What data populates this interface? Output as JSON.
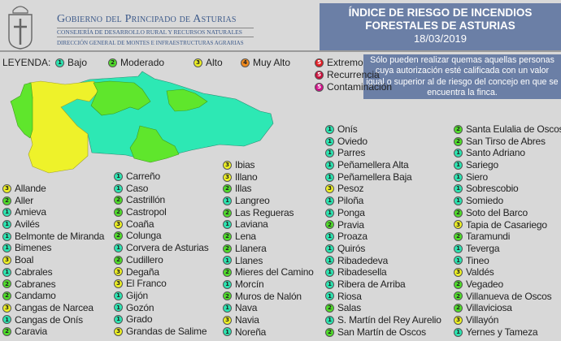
{
  "header": {
    "gov_title": "Gobierno del Principado de Asturias",
    "consejeria": "CONSEJERÍA DE DESARROLLO RURAL Y RECURSOS NATURALES",
    "direccion": "DIRECCIÓN GENERAL DE MONTES E INFRAESTRUCTURAS AGRARIAS",
    "title1": "ÍNDICE DE RIESGO DE INCENDIOS",
    "title2": "FORESTALES DE ASTURIAS",
    "date": "18/03/2019"
  },
  "info": "Sólo pueden realizar quemas aquellas personas cuya autorización esté calificada con un valor igual o superior al de riesgo del concejo en que se encuentra la finca.",
  "legend": {
    "label": "LEYENDA:",
    "items": [
      {
        "num": "1",
        "label": "Bajo",
        "color": "#2de3b0"
      },
      {
        "num": "2",
        "label": "Moderado",
        "color": "#4fdc2a"
      },
      {
        "num": "3",
        "label": "Alto",
        "color": "#ecef24"
      },
      {
        "num": "4",
        "label": "Muy Alto",
        "color": "#f08a1e"
      },
      {
        "num": "5",
        "label": "Extremo",
        "color": "#e01e25"
      },
      {
        "num": "5",
        "label": "Recurrencia",
        "color": "#c8103c"
      },
      {
        "num": "5",
        "label": "Contaminación",
        "color": "#d0128a"
      }
    ]
  },
  "map_colors": {
    "bajo": "#2de8b4",
    "moderado": "#5fe62c",
    "alto": "#eef22a"
  },
  "columns": [
    [
      [
        "3",
        "Allande"
      ],
      [
        "2",
        "Aller"
      ],
      [
        "1",
        "Amieva"
      ],
      [
        "1",
        "Avilés"
      ],
      [
        "1",
        "Belmonte de Miranda"
      ],
      [
        "1",
        "Bimenes"
      ],
      [
        "3",
        "Boal"
      ],
      [
        "1",
        "Cabrales"
      ],
      [
        "2",
        "Cabranes"
      ],
      [
        "2",
        "Candamo"
      ],
      [
        "3",
        "Cangas de Narcea"
      ],
      [
        "1",
        "Cangas de Onís"
      ],
      [
        "2",
        "Caravia"
      ]
    ],
    [
      [
        "1",
        "Carreño"
      ],
      [
        "1",
        "Caso"
      ],
      [
        "2",
        "Castrillón"
      ],
      [
        "2",
        "Castropol"
      ],
      [
        "3",
        "Coaña"
      ],
      [
        "2",
        "Colunga"
      ],
      [
        "1",
        "Corvera de Asturias"
      ],
      [
        "2",
        "Cudillero"
      ],
      [
        "3",
        "Degaña"
      ],
      [
        "3",
        "El Franco"
      ],
      [
        "1",
        "Gijón"
      ],
      [
        "1",
        "Gozón"
      ],
      [
        "1",
        "Grado"
      ],
      [
        "3",
        "Grandas de Salime"
      ]
    ],
    [
      [
        "3",
        "Ibias"
      ],
      [
        "3",
        "Illano"
      ],
      [
        "2",
        "Illas"
      ],
      [
        "1",
        "Langreo"
      ],
      [
        "2",
        "Las Regueras"
      ],
      [
        "1",
        "Laviana"
      ],
      [
        "2",
        "Lena"
      ],
      [
        "2",
        "Llanera"
      ],
      [
        "1",
        "Llanes"
      ],
      [
        "2",
        "Mieres del Camino"
      ],
      [
        "1",
        "Morcín"
      ],
      [
        "2",
        "Muros de Nalón"
      ],
      [
        "1",
        "Nava"
      ],
      [
        "3",
        "Navia"
      ],
      [
        "1",
        "Noreña"
      ]
    ],
    [
      [
        "1",
        "Onís"
      ],
      [
        "1",
        "Oviedo"
      ],
      [
        "1",
        "Parres"
      ],
      [
        "1",
        "Peñamellera Alta"
      ],
      [
        "1",
        "Peñamellera Baja"
      ],
      [
        "3",
        "Pesoz"
      ],
      [
        "1",
        "Piloña"
      ],
      [
        "1",
        "Ponga"
      ],
      [
        "2",
        "Pravia"
      ],
      [
        "1",
        "Proaza"
      ],
      [
        "1",
        "Quirós"
      ],
      [
        "1",
        "Ribadedeva"
      ],
      [
        "1",
        "Ribadesella"
      ],
      [
        "1",
        "Ribera de Arriba"
      ],
      [
        "1",
        "Riosa"
      ],
      [
        "2",
        "Salas"
      ],
      [
        "1",
        "S. Martín del Rey Aurelio"
      ],
      [
        "2",
        "San Martín de Oscos"
      ]
    ],
    [
      [
        "2",
        "Santa Eulalia de Oscos"
      ],
      [
        "2",
        "San Tirso de Abres"
      ],
      [
        "1",
        "Santo Adriano"
      ],
      [
        "1",
        "Sariego"
      ],
      [
        "1",
        "Siero"
      ],
      [
        "1",
        "Sobrescobio"
      ],
      [
        "1",
        "Somiedo"
      ],
      [
        "2",
        "Soto del Barco"
      ],
      [
        "3",
        "Tapia de Casariego"
      ],
      [
        "2",
        "Taramundi"
      ],
      [
        "1",
        "Teverga"
      ],
      [
        "1",
        "Tineo"
      ],
      [
        "3",
        "Valdés"
      ],
      [
        "2",
        "Vegadeo"
      ],
      [
        "2",
        "Villanueva de Oscos"
      ],
      [
        "2",
        "Villaviciosa"
      ],
      [
        "3",
        "Villayón"
      ],
      [
        "1",
        "Yernes y Tameza"
      ]
    ]
  ]
}
